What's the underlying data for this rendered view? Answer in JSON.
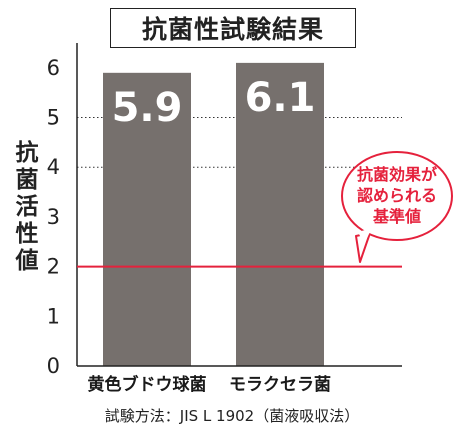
{
  "chart_data": {
    "type": "bar",
    "title": "抗菌性試験結果",
    "ylabel": "抗菌活性値",
    "categories": [
      "黄色ブドウ球菌",
      "モラクセラ菌"
    ],
    "values": [
      5.9,
      6.1
    ],
    "value_labels": [
      "5.9",
      "6.1"
    ],
    "ylim": [
      0,
      6.5
    ],
    "yticks": [
      "0",
      "1",
      "2",
      "3",
      "4",
      "5",
      "6"
    ],
    "dotted_gridlines_at": [
      4,
      5
    ],
    "threshold": {
      "value": 2,
      "label_lines": [
        "抗菌効果が",
        "認められる",
        "基準値"
      ]
    },
    "method": "試験方法：JIS L 1902（菌液吸収法）",
    "colors": {
      "bar": "#76706d",
      "threshold": "#e5213c",
      "text": "#1a1a1a"
    }
  }
}
